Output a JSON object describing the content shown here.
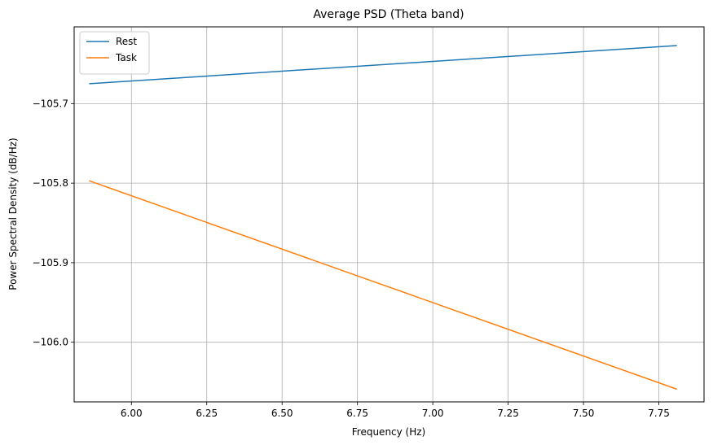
{
  "chart_data": {
    "type": "line",
    "title": "Average PSD (Theta band)",
    "xlabel": "Frequency (Hz)",
    "ylabel": "Power Spectral Density (dB/Hz)",
    "xlim": [
      5.81,
      7.9
    ],
    "ylim": [
      -106.075,
      -105.6035
    ],
    "x_ticks": [
      6.0,
      6.25,
      6.5,
      6.75,
      7.0,
      7.25,
      7.5,
      7.75
    ],
    "x_tick_labels": [
      "6.00",
      "6.25",
      "6.50",
      "6.75",
      "7.00",
      "7.25",
      "7.50",
      "7.75"
    ],
    "y_ticks": [
      -105.7,
      -105.8,
      -105.9,
      -106.0
    ],
    "y_tick_labels": [
      "−105.7",
      "−105.8",
      "−105.9",
      "−106.0"
    ],
    "grid": true,
    "legend_position": "top-left",
    "series": [
      {
        "name": "Rest",
        "color": "#1f77b4",
        "x": [
          5.86,
          7.81
        ],
        "y": [
          -105.675,
          -105.627
        ]
      },
      {
        "name": "Task",
        "color": "#ff7f0e",
        "x": [
          5.86,
          7.81
        ],
        "y": [
          -105.797,
          -106.059
        ]
      }
    ]
  }
}
